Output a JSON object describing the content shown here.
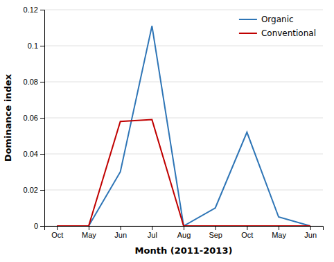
{
  "chart_data": {
    "type": "line",
    "categories": [
      "Oct",
      "May",
      "Jun",
      "Jul",
      "Aug",
      "Sep",
      "Oct",
      "May",
      "Jun"
    ],
    "series": [
      {
        "name": "Organic",
        "color": "#2E75B6",
        "values": [
          0,
          0,
          0.03,
          0.111,
          0,
          0.01,
          0.052,
          0.005,
          0
        ]
      },
      {
        "name": "Conventional",
        "color": "#C00000",
        "values": [
          0,
          0,
          0.058,
          0.059,
          0,
          0,
          0,
          0,
          0
        ]
      }
    ],
    "xlabel": "Month (2011-2013)",
    "ylabel": "Dominance index",
    "ylim": [
      0,
      0.12
    ],
    "yticks": [
      0,
      0.02,
      0.04,
      0.06,
      0.08,
      0.1,
      0.12
    ],
    "grid": true,
    "legend": "upper right"
  }
}
